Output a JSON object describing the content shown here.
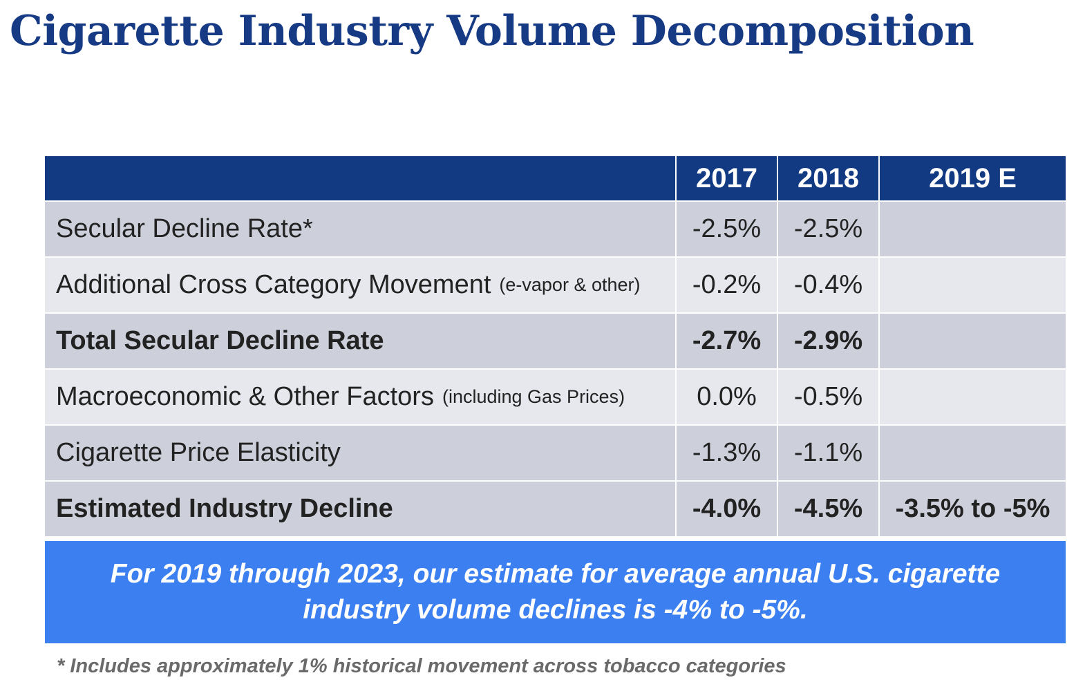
{
  "title": "Cigarette Industry Volume Decomposition",
  "colors": {
    "title": "#163a83",
    "header_bg": "#123a83",
    "row_shade": "#cdd0da",
    "row_light": "#e6e8ee",
    "callout_bg": "#3b7ff0",
    "footnote": "#6a6a6a"
  },
  "chart_data": {
    "type": "table",
    "columns": [
      "",
      "2017",
      "2018",
      "2019 E"
    ],
    "rows": [
      {
        "label": "Secular Decline Rate*",
        "note": "",
        "values": [
          "-2.5%",
          "-2.5%",
          ""
        ],
        "bold": false
      },
      {
        "label": "Additional Cross Category Movement",
        "note": "(e-vapor & other)",
        "values": [
          "-0.2%",
          "-0.4%",
          ""
        ],
        "bold": false
      },
      {
        "label": "Total Secular Decline Rate",
        "note": "",
        "values": [
          "-2.7%",
          "-2.9%",
          ""
        ],
        "bold": true
      },
      {
        "label": "Macroeconomic & Other Factors",
        "note": "(including Gas Prices)",
        "values": [
          "0.0%",
          "-0.5%",
          ""
        ],
        "bold": false
      },
      {
        "label": "Cigarette Price Elasticity",
        "note": "",
        "values": [
          "-1.3%",
          "-1.1%",
          ""
        ],
        "bold": false
      },
      {
        "label": "Estimated Industry Decline",
        "note": "",
        "values": [
          "-4.0%",
          "-4.5%",
          "-3.5% to -5%"
        ],
        "bold": true
      }
    ]
  },
  "callout": {
    "line1": "For 2019 through 2023, our estimate for average annual U.S. cigarette",
    "line2": "industry volume declines is -4% to -5%."
  },
  "footnote": "* Includes approximately 1% historical movement across tobacco categories"
}
